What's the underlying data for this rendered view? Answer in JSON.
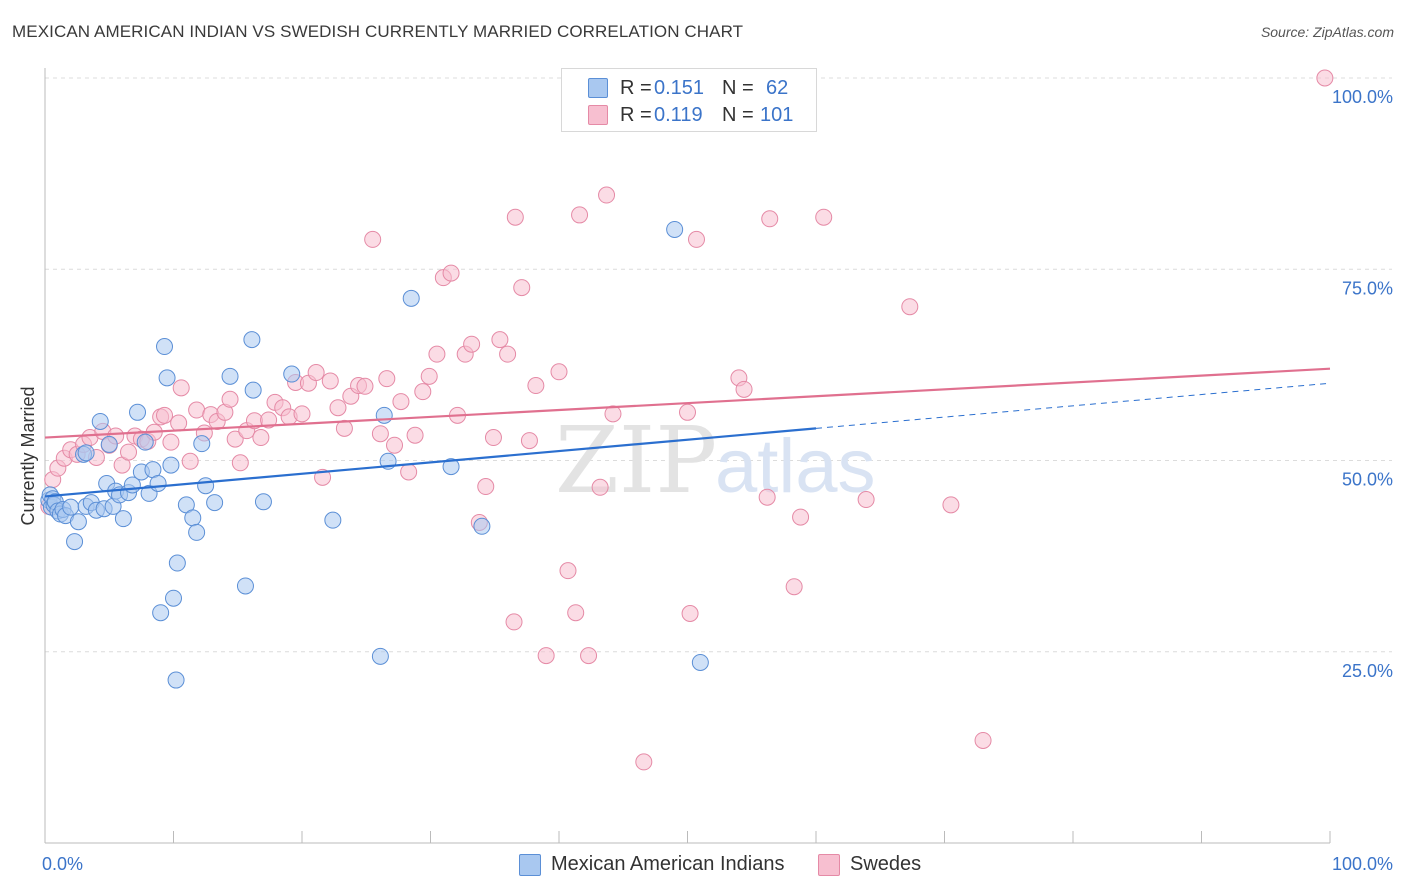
{
  "title": "MEXICAN AMERICAN INDIAN VS SWEDISH CURRENTLY MARRIED CORRELATION CHART",
  "source": "Source: ZipAtlas.com",
  "watermark": {
    "zip": "ZIP",
    "atlas": "atlas"
  },
  "legend": {
    "rows": [
      {
        "r_label": "R =",
        "r_value": "0.151",
        "n_label": "N =",
        "n_value": "62"
      },
      {
        "r_label": "R =",
        "r_value": "0.119",
        "n_label": "N =",
        "n_value": "101"
      }
    ]
  },
  "bottom_legend": [
    "Mexican American Indians",
    "Swedes"
  ],
  "colors": {
    "blue_fill": "#a9c8f0",
    "blue_stroke": "#5b8fd6",
    "blue_line": "#2b6fcf",
    "pink_fill": "#f7bfd0",
    "pink_stroke": "#e58aa6",
    "pink_line": "#e0708f",
    "grid": "#dcdcdc",
    "tick_text": "#3b74c9"
  },
  "chart_data": {
    "type": "scatter",
    "title": "MEXICAN AMERICAN INDIAN VS SWEDISH CURRENTLY MARRIED CORRELATION CHART",
    "xlabel": "",
    "ylabel": "Currently Married",
    "xlim": [
      0,
      100
    ],
    "ylim": [
      0,
      100
    ],
    "x_tick_labels": [
      "0.0%",
      "100.0%"
    ],
    "y_ticks": [
      {
        "value": 25,
        "label": "25.0%"
      },
      {
        "value": 50,
        "label": "50.0%"
      },
      {
        "value": 75,
        "label": "75.0%"
      },
      {
        "value": 100,
        "label": "100.0%"
      }
    ],
    "grid": true,
    "legend_position": "top-center",
    "series": [
      {
        "name": "Mexican American Indians",
        "R": 0.151,
        "N": 62,
        "trend": {
          "x0": 0,
          "y0": 45.3,
          "x1": 60,
          "y1": 54.2,
          "dashed_to_x": 100,
          "dashed_to_y": 60.1
        },
        "points": [
          [
            0.3,
            44.8
          ],
          [
            0.4,
            45.5
          ],
          [
            0.5,
            43.9
          ],
          [
            0.6,
            45.0
          ],
          [
            0.7,
            44.2
          ],
          [
            0.8,
            44.6
          ],
          [
            1.0,
            43.4
          ],
          [
            1.2,
            43.0
          ],
          [
            1.4,
            43.6
          ],
          [
            1.6,
            42.8
          ],
          [
            2.0,
            43.9
          ],
          [
            2.3,
            39.4
          ],
          [
            2.6,
            42.0
          ],
          [
            3.0,
            50.8
          ],
          [
            3.2,
            44.0
          ],
          [
            3.6,
            44.5
          ],
          [
            4.0,
            43.5
          ],
          [
            4.3,
            55.1
          ],
          [
            4.6,
            43.7
          ],
          [
            4.8,
            47.0
          ],
          [
            5.0,
            52.1
          ],
          [
            5.3,
            44.0
          ],
          [
            5.5,
            46.0
          ],
          [
            5.8,
            45.5
          ],
          [
            6.1,
            42.4
          ],
          [
            6.5,
            45.8
          ],
          [
            6.8,
            46.8
          ],
          [
            7.2,
            56.3
          ],
          [
            7.5,
            48.5
          ],
          [
            7.8,
            52.4
          ],
          [
            8.1,
            45.7
          ],
          [
            8.4,
            48.8
          ],
          [
            8.8,
            47.0
          ],
          [
            9.3,
            64.9
          ],
          [
            9.5,
            60.8
          ],
          [
            9.8,
            49.4
          ],
          [
            10.3,
            36.6
          ],
          [
            10.0,
            32.0
          ],
          [
            9.0,
            30.1
          ],
          [
            10.2,
            21.3
          ],
          [
            11.0,
            44.2
          ],
          [
            11.5,
            42.5
          ],
          [
            11.8,
            40.6
          ],
          [
            12.2,
            52.2
          ],
          [
            12.5,
            46.7
          ],
          [
            13.2,
            44.5
          ],
          [
            14.4,
            61.0
          ],
          [
            15.6,
            33.6
          ],
          [
            16.1,
            65.8
          ],
          [
            16.2,
            59.2
          ],
          [
            17.0,
            44.6
          ],
          [
            19.2,
            61.3
          ],
          [
            22.4,
            42.2
          ],
          [
            26.1,
            24.4
          ],
          [
            26.4,
            55.9
          ],
          [
            26.7,
            49.9
          ],
          [
            28.5,
            71.2
          ],
          [
            31.6,
            49.2
          ],
          [
            34.0,
            41.4
          ],
          [
            49.0,
            80.2
          ],
          [
            51.0,
            23.6
          ],
          [
            3.2,
            51.0
          ]
        ]
      },
      {
        "name": "Swedes",
        "R": 0.119,
        "N": 101,
        "trend": {
          "x0": 0,
          "y0": 53.0,
          "x1": 100,
          "y1": 62.0
        },
        "points": [
          [
            0.3,
            44.0
          ],
          [
            0.6,
            47.5
          ],
          [
            1.0,
            49.0
          ],
          [
            1.5,
            50.3
          ],
          [
            2.0,
            51.4
          ],
          [
            2.5,
            50.8
          ],
          [
            3.0,
            52.1
          ],
          [
            3.5,
            53.0
          ],
          [
            4.0,
            50.4
          ],
          [
            4.5,
            53.8
          ],
          [
            5.0,
            52.0
          ],
          [
            5.5,
            53.2
          ],
          [
            6.0,
            49.4
          ],
          [
            6.5,
            51.1
          ],
          [
            7.0,
            53.2
          ],
          [
            7.5,
            52.8
          ],
          [
            8.0,
            52.5
          ],
          [
            8.5,
            53.7
          ],
          [
            9.0,
            55.7
          ],
          [
            9.3,
            55.9
          ],
          [
            9.8,
            52.4
          ],
          [
            10.4,
            54.9
          ],
          [
            10.6,
            59.5
          ],
          [
            11.3,
            49.9
          ],
          [
            11.8,
            56.6
          ],
          [
            12.4,
            53.6
          ],
          [
            12.9,
            56.0
          ],
          [
            13.4,
            55.1
          ],
          [
            14.0,
            56.3
          ],
          [
            14.4,
            58.0
          ],
          [
            14.8,
            52.8
          ],
          [
            15.2,
            49.7
          ],
          [
            15.7,
            53.9
          ],
          [
            16.3,
            55.2
          ],
          [
            16.8,
            53.0
          ],
          [
            17.4,
            55.3
          ],
          [
            17.9,
            57.6
          ],
          [
            18.5,
            56.9
          ],
          [
            19.0,
            55.7
          ],
          [
            19.5,
            60.2
          ],
          [
            20.0,
            56.1
          ],
          [
            20.5,
            60.1
          ],
          [
            21.1,
            61.5
          ],
          [
            21.6,
            47.8
          ],
          [
            22.2,
            60.4
          ],
          [
            22.8,
            56.9
          ],
          [
            23.3,
            54.2
          ],
          [
            23.8,
            58.4
          ],
          [
            24.4,
            59.8
          ],
          [
            24.9,
            59.7
          ],
          [
            25.5,
            78.9
          ],
          [
            26.1,
            53.5
          ],
          [
            26.6,
            60.7
          ],
          [
            27.2,
            52.0
          ],
          [
            27.7,
            57.7
          ],
          [
            28.3,
            48.5
          ],
          [
            28.8,
            53.3
          ],
          [
            29.4,
            59.0
          ],
          [
            29.9,
            61.0
          ],
          [
            30.5,
            63.9
          ],
          [
            31.0,
            73.9
          ],
          [
            31.6,
            74.5
          ],
          [
            32.1,
            55.9
          ],
          [
            32.7,
            63.9
          ],
          [
            33.2,
            65.2
          ],
          [
            33.8,
            41.9
          ],
          [
            34.3,
            46.6
          ],
          [
            34.9,
            53.0
          ],
          [
            35.4,
            65.8
          ],
          [
            36.0,
            63.9
          ],
          [
            36.6,
            81.8
          ],
          [
            37.1,
            72.6
          ],
          [
            37.7,
            52.6
          ],
          [
            38.2,
            59.8
          ],
          [
            39.0,
            24.5
          ],
          [
            40.0,
            61.6
          ],
          [
            40.7,
            35.6
          ],
          [
            41.3,
            30.1
          ],
          [
            41.6,
            82.1
          ],
          [
            42.3,
            24.5
          ],
          [
            43.2,
            46.5
          ],
          [
            43.7,
            84.7
          ],
          [
            44.2,
            56.1
          ],
          [
            46.6,
            10.6
          ],
          [
            46.8,
            100
          ],
          [
            50.0,
            56.3
          ],
          [
            50.2,
            30.0
          ],
          [
            50.7,
            78.9
          ],
          [
            54.0,
            60.8
          ],
          [
            54.4,
            59.3
          ],
          [
            56.2,
            45.2
          ],
          [
            56.4,
            81.6
          ],
          [
            58.3,
            33.5
          ],
          [
            58.8,
            42.6
          ],
          [
            60.6,
            81.8
          ],
          [
            63.9,
            44.9
          ],
          [
            67.3,
            70.1
          ],
          [
            70.5,
            44.2
          ],
          [
            73.0,
            13.4
          ],
          [
            99.6,
            100
          ],
          [
            36.5,
            28.9
          ]
        ]
      }
    ]
  }
}
